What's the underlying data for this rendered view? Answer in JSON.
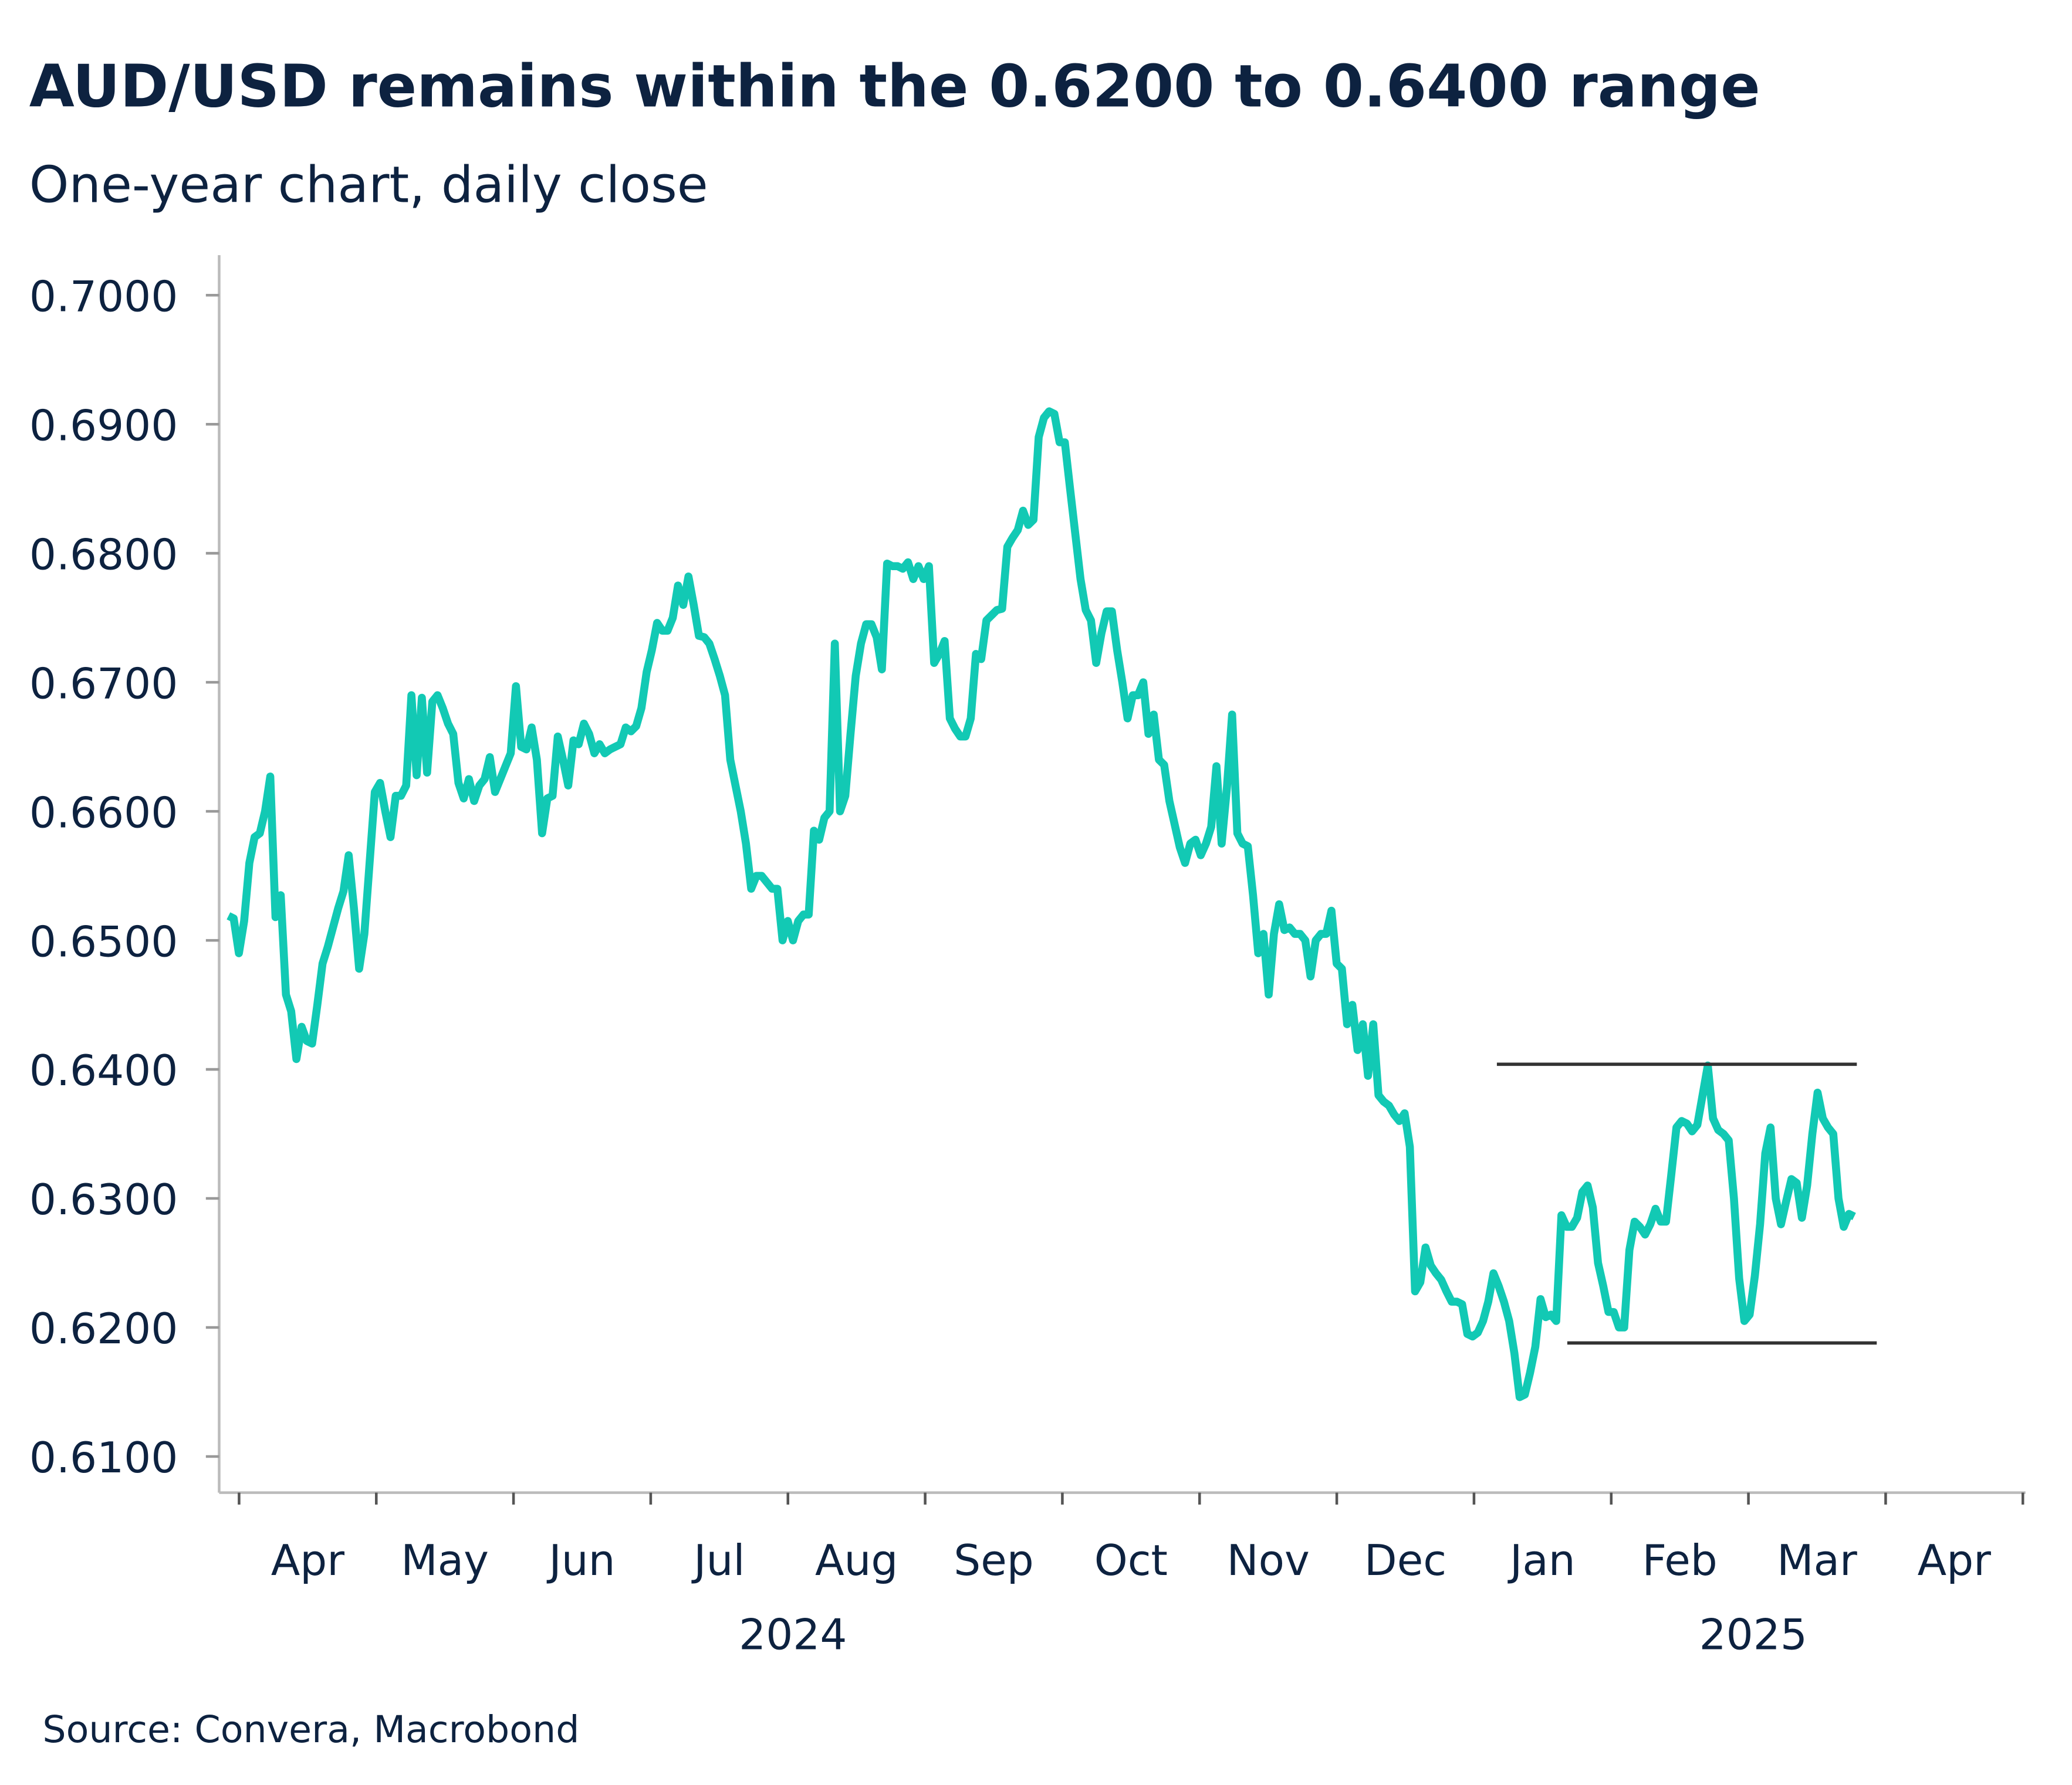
{
  "chart_data": {
    "type": "line",
    "title": "AUD/USD remains within the 0.6200 to 0.6400 range",
    "subtitle": "One-year chart, daily close",
    "source": "Source: Convera, Macrobond",
    "color": "#12c9b4",
    "values": [
      0.6519,
      0.6517,
      0.649,
      0.6515,
      0.656,
      0.658,
      0.6583,
      0.66,
      0.6627,
      0.6518,
      0.6535,
      0.6458,
      0.6445,
      0.6408,
      0.6433,
      0.6422,
      0.642,
      0.645,
      0.6482,
      0.6495,
      0.651,
      0.6525,
      0.6538,
      0.6566,
      0.6525,
      0.6478,
      0.6505,
      0.656,
      0.6615,
      0.6622,
      0.66,
      0.658,
      0.6612,
      0.6612,
      0.662,
      0.669,
      0.6628,
      0.6688,
      0.663,
      0.6685,
      0.669,
      0.668,
      0.6668,
      0.666,
      0.6622,
      0.661,
      0.6625,
      0.6608,
      0.662,
      0.6625,
      0.6642,
      0.6615,
      0.6625,
      0.6635,
      0.6645,
      0.6697,
      0.665,
      0.6648,
      0.6665,
      0.664,
      0.6583,
      0.661,
      0.6612,
      0.6658,
      0.664,
      0.662,
      0.6655,
      0.6652,
      0.6668,
      0.666,
      0.6645,
      0.6652,
      0.6645,
      0.6648,
      0.665,
      0.6652,
      0.6665,
      0.6662,
      0.6666,
      0.668,
      0.6708,
      0.6725,
      0.6746,
      0.674,
      0.674,
      0.675,
      0.6775,
      0.676,
      0.6782,
      0.676,
      0.6736,
      0.6735,
      0.673,
      0.6718,
      0.6705,
      0.669,
      0.664,
      0.662,
      0.66,
      0.6575,
      0.654,
      0.655,
      0.655,
      0.6545,
      0.654,
      0.654,
      0.65,
      0.6515,
      0.65,
      0.6515,
      0.652,
      0.652,
      0.6585,
      0.6578,
      0.6595,
      0.66,
      0.673,
      0.66,
      0.6612,
      0.666,
      0.6705,
      0.673,
      0.6745,
      0.6745,
      0.6735,
      0.671,
      0.6792,
      0.679,
      0.679,
      0.6788,
      0.6793,
      0.678,
      0.679,
      0.678,
      0.679,
      0.6715,
      0.6722,
      0.6732,
      0.6672,
      0.6664,
      0.6658,
      0.6658,
      0.6672,
      0.6722,
      0.6718,
      0.6748,
      0.6752,
      0.6756,
      0.6757,
      0.6805,
      0.6812,
      0.6818,
      0.6833,
      0.6822,
      0.6826,
      0.689,
      0.6905,
      0.691,
      0.6908,
      0.6886,
      0.6886,
      0.685,
      0.6815,
      0.678,
      0.6756,
      0.6748,
      0.6715,
      0.6738,
      0.6755,
      0.6755,
      0.6725,
      0.67,
      0.6672,
      0.669,
      0.669,
      0.67,
      0.666,
      0.6675,
      0.664,
      0.6636,
      0.6608,
      0.659,
      0.6572,
      0.656,
      0.6575,
      0.6578,
      0.6566,
      0.6575,
      0.6588,
      0.6635,
      0.6575,
      0.6618,
      0.6675,
      0.6583,
      0.6575,
      0.6573,
      0.6535,
      0.649,
      0.6505,
      0.6458,
      0.6505,
      0.6528,
      0.6508,
      0.651,
      0.6505,
      0.6505,
      0.65,
      0.6472,
      0.65,
      0.6505,
      0.6505,
      0.6523,
      0.6482,
      0.6478,
      0.6435,
      0.645,
      0.6415,
      0.6435,
      0.6395,
      0.6435,
      0.638,
      0.6375,
      0.6372,
      0.6365,
      0.636,
      0.6366,
      0.634,
      0.6228,
      0.6235,
      0.6262,
      0.6248,
      0.6242,
      0.6237,
      0.6228,
      0.622,
      0.622,
      0.6218,
      0.6195,
      0.6193,
      0.6196,
      0.6205,
      0.622,
      0.6242,
      0.6232,
      0.622,
      0.6205,
      0.618,
      0.6146,
      0.6148,
      0.6165,
      0.6185,
      0.6222,
      0.6208,
      0.621,
      0.6205,
      0.6287,
      0.6278,
      0.6278,
      0.6285,
      0.6305,
      0.631,
      0.6293,
      0.625,
      0.6232,
      0.6212,
      0.6212,
      0.62,
      0.62,
      0.626,
      0.6282,
      0.6278,
      0.6272,
      0.628,
      0.6292,
      0.6282,
      0.6282,
      0.6318,
      0.6355,
      0.636,
      0.6358,
      0.6352,
      0.6357,
      0.638,
      0.6403,
      0.6362,
      0.6353,
      0.635,
      0.6345,
      0.63,
      0.6238,
      0.6205,
      0.621,
      0.624,
      0.628,
      0.6335,
      0.6355,
      0.63,
      0.628,
      0.6298,
      0.6315,
      0.6312,
      0.6285,
      0.631,
      0.635,
      0.6382,
      0.6362,
      0.6355,
      0.635,
      0.63,
      0.6278,
      0.6288,
      0.6286
    ],
    "ylim": [
      0.6072,
      0.7031
    ],
    "yticks": [
      {
        "value": 0.61,
        "label": "0.6100"
      },
      {
        "value": 0.62,
        "label": "0.6200"
      },
      {
        "value": 0.63,
        "label": "0.6300"
      },
      {
        "value": 0.64,
        "label": "0.6400"
      },
      {
        "value": 0.65,
        "label": "0.6500"
      },
      {
        "value": 0.66,
        "label": "0.6600"
      },
      {
        "value": 0.67,
        "label": "0.6700"
      },
      {
        "value": 0.68,
        "label": "0.6800"
      },
      {
        "value": 0.69,
        "label": "0.6900"
      },
      {
        "value": 0.7,
        "label": "0.7000"
      }
    ],
    "x_month_labels": [
      "Apr",
      "May",
      "Jun",
      "Jul",
      "Aug",
      "Sep",
      "Oct",
      "Nov",
      "Dec",
      "Jan",
      "Feb",
      "Mar",
      "Apr"
    ],
    "x_year_labels": [
      "2024",
      "2025"
    ],
    "range_lines": [
      {
        "value": 0.6404,
        "color": "#333333"
      },
      {
        "value": 0.6188,
        "color": "#333333"
      }
    ]
  }
}
